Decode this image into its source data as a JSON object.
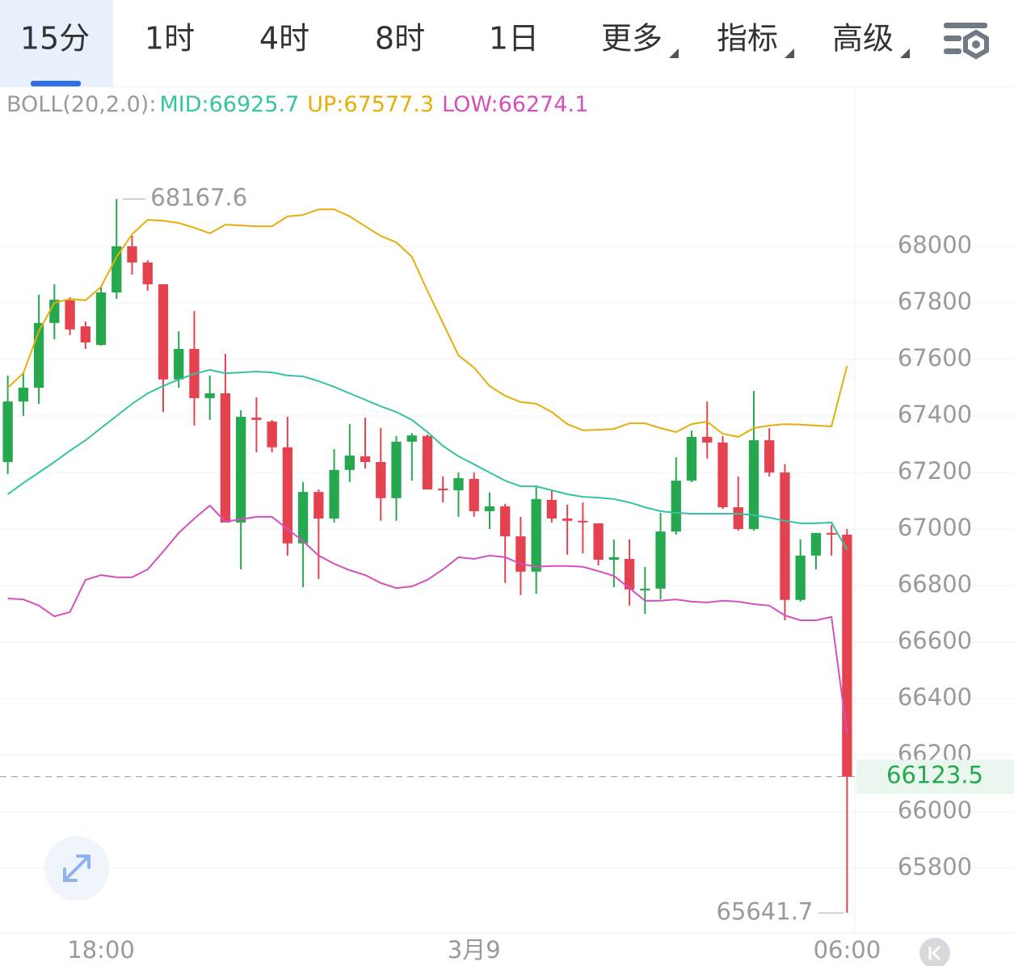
{
  "tabs": [
    "15分",
    "1时",
    "4时",
    "8时",
    "1日",
    "更多",
    "指标",
    "高级"
  ],
  "active_tab": 0,
  "chart_data": {
    "type": "candlestick",
    "indicator": "BOLL(20,2.0):",
    "categories": [
      null,
      null,
      null,
      null,
      null,
      null,
      "18:00",
      null,
      null,
      null,
      null,
      null,
      null,
      null,
      null,
      null,
      null,
      null,
      null,
      null,
      null,
      null,
      null,
      null,
      null,
      null,
      null,
      null,
      null,
      null,
      "3月9",
      null,
      null,
      null,
      null,
      null,
      null,
      null,
      null,
      null,
      null,
      null,
      null,
      null,
      null,
      null,
      null,
      null,
      null,
      null,
      null,
      null,
      null,
      null,
      "06:00"
    ],
    "open": [
      67237,
      67451,
      67500,
      67729,
      67809,
      67717,
      67651,
      67837,
      68000,
      67943,
      67866,
      67529,
      67637,
      67463,
      67480,
      67023,
      67394,
      67380,
      67289,
      66949,
      67131,
      67037,
      67209,
      67257,
      67237,
      67109,
      67309,
      67329,
      67143,
      67137,
      67177,
      67063,
      67080,
      66974,
      66849,
      67103,
      67037,
      67029,
      67020,
      66891,
      66894,
      66783,
      66789,
      66991,
      67171,
      67326,
      67306,
      67077,
      67000,
      67314,
      67200,
      66749,
      66906,
      66986,
      66980
    ],
    "high": [
      67543,
      67551,
      67829,
      67866,
      67820,
      67734,
      67857,
      68167.6,
      68037,
      67951,
      67866,
      67700,
      67771,
      67543,
      67620,
      67420,
      67466,
      67386,
      67397,
      67166,
      67140,
      67283,
      67371,
      67394,
      67357,
      67329,
      67340,
      67334,
      67186,
      67200,
      67200,
      67129,
      67089,
      67043,
      67154,
      67137,
      67086,
      67094,
      67020,
      66963,
      66963,
      66866,
      67057,
      67254,
      67349,
      67451,
      67329,
      67186,
      67489,
      67357,
      67229,
      66963,
      66986,
      67014,
      67000
    ],
    "low": [
      67194,
      67400,
      67443,
      67671,
      67686,
      67637,
      67649,
      67814,
      67900,
      67843,
      67414,
      67500,
      67366,
      67386,
      67023,
      66857,
      67271,
      67271,
      66906,
      66794,
      66823,
      67023,
      67166,
      67214,
      67029,
      67029,
      67171,
      67140,
      67094,
      67043,
      67043,
      67000,
      66809,
      66766,
      66771,
      67023,
      66909,
      66914,
      66871,
      66794,
      66729,
      66700,
      66751,
      66980,
      67166,
      67249,
      67071,
      66994,
      66994,
      67186,
      66677,
      66743,
      66857,
      66906,
      65641.7
    ],
    "close": [
      67451,
      67500,
      67729,
      67811,
      67706,
      67660,
      67837,
      68000,
      67943,
      67866,
      67529,
      67637,
      67463,
      67480,
      67023,
      67397,
      67386,
      67289,
      66949,
      67131,
      67037,
      67209,
      67260,
      67237,
      67109,
      67309,
      67331,
      67140,
      67137,
      67180,
      67063,
      67080,
      66974,
      66849,
      67106,
      67037,
      67029,
      67026,
      66891,
      66900,
      66786,
      66789,
      66991,
      67171,
      67326,
      67306,
      67077,
      67000,
      67314,
      67200,
      66749,
      66906,
      66986,
      66980,
      66123.5
    ],
    "up_color": "#26a84e",
    "down_color": "#e5424f",
    "series": [
      {
        "name": "MID:",
        "color": "#35c3a2",
        "values": [
          67123,
          67163,
          67200,
          67237,
          67277,
          67314,
          67357,
          67400,
          67443,
          67480,
          67506,
          67529,
          67549,
          67563,
          67551,
          67554,
          67557,
          67554,
          67543,
          67540,
          67523,
          67503,
          67480,
          67457,
          67434,
          67414,
          67386,
          67343,
          67294,
          67257,
          67229,
          67200,
          67171,
          67151,
          67151,
          67137,
          67123,
          67114,
          67111,
          67106,
          67094,
          67077,
          67063,
          67057,
          67054,
          67054,
          67054,
          67054,
          67049,
          67040,
          67029,
          67020,
          67020,
          67023,
          66925.7
        ]
      },
      {
        "name": "UP:",
        "color": "#e6ae0a",
        "values": [
          67500,
          67551,
          67700,
          67800,
          67814,
          67809,
          67857,
          67963,
          68043,
          68094,
          68091,
          68083,
          68066,
          68046,
          68077,
          68074,
          68071,
          68071,
          68106,
          68111,
          68131,
          68131,
          68106,
          68071,
          68037,
          68014,
          67963,
          67843,
          67729,
          67614,
          67571,
          67506,
          67471,
          67449,
          67443,
          67414,
          67371,
          67349,
          67351,
          67354,
          67374,
          67374,
          67357,
          67343,
          67371,
          67380,
          67337,
          67326,
          67357,
          67366,
          67371,
          67369,
          67366,
          67363,
          67577.3
        ]
      },
      {
        "name": "LOW:",
        "color": "#d44fbf",
        "values": [
          66754,
          66751,
          66729,
          66691,
          66706,
          66820,
          66837,
          66829,
          66829,
          66857,
          66920,
          66986,
          67037,
          67083,
          67026,
          67034,
          67043,
          67043,
          67000,
          66957,
          66906,
          66877,
          66854,
          66837,
          66809,
          66791,
          66797,
          66820,
          66857,
          66900,
          66894,
          66906,
          66900,
          66877,
          66866,
          66869,
          66869,
          66866,
          66851,
          66834,
          66791,
          66746,
          66746,
          66751,
          66743,
          66740,
          66746,
          66743,
          66734,
          66729,
          66694,
          66677,
          66677,
          66689,
          66274.1
        ]
      }
    ],
    "ylim": [
      65571,
      68563
    ],
    "yticks": [
      65800,
      66000,
      66200,
      66400,
      66600,
      66800,
      67000,
      67200,
      67400,
      67600,
      67800,
      68000
    ],
    "grid": true
  }
}
